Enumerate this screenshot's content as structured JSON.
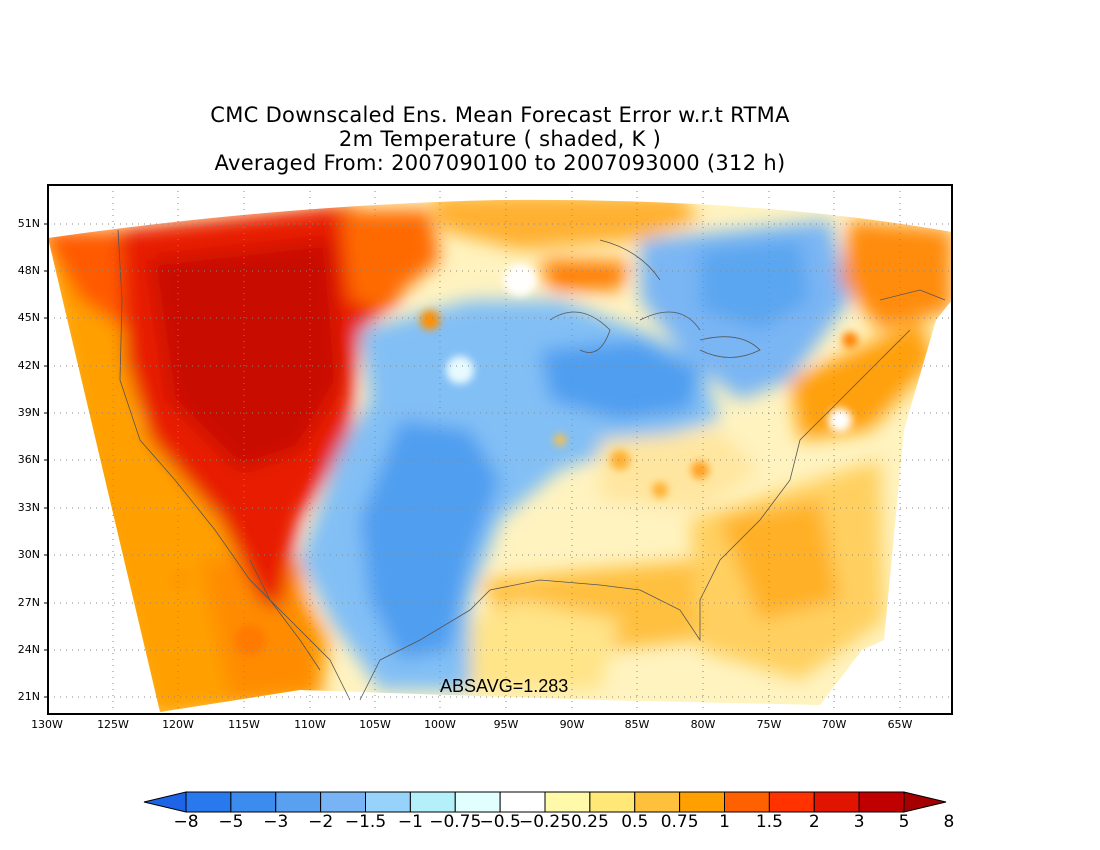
{
  "title": {
    "line1": "CMC Downscaled Ens. Mean Forecast Error w.r.t RTMA",
    "line2": "2m Temperature ( shaded, K )",
    "line3": "Averaged From: 2007090100 to 2007093000 (312 h)"
  },
  "annotation": "ABSAVG=1.283",
  "lat_labels": [
    "51N",
    "48N",
    "45N",
    "42N",
    "39N",
    "36N",
    "33N",
    "30N",
    "27N",
    "24N",
    "21N"
  ],
  "lon_labels": [
    "130W",
    "125W",
    "120W",
    "115W",
    "110W",
    "105W",
    "100W",
    "95W",
    "90W",
    "85W",
    "80W",
    "75W",
    "70W",
    "65W"
  ],
  "colorbar": {
    "labels": [
      "−8",
      "−5",
      "−3",
      "−2",
      "−1.5",
      "−1",
      "−0.75",
      "−0.5",
      "−0.25",
      "0.25",
      "0.5",
      "0.75",
      "1",
      "1.5",
      "2",
      "3",
      "5",
      "8"
    ],
    "colors": [
      "#1e64e6",
      "#2878ee",
      "#3c8cf0",
      "#5aa0f0",
      "#78b4f5",
      "#96d2fa",
      "#b4f0fa",
      "#e1ffff",
      "#ffffff",
      "#fffaaa",
      "#ffe878",
      "#ffc03c",
      "#ffa000",
      "#ff6000",
      "#ff3200",
      "#e11400",
      "#c00000",
      "#a50000"
    ]
  },
  "legend_colors": {
    "strong_cold": "#3c8cf0",
    "cold": "#78b4f5",
    "neutral": "#ffffff",
    "warm": "#ffc03c",
    "hot": "#ff6000",
    "very_hot": "#e11400"
  }
}
